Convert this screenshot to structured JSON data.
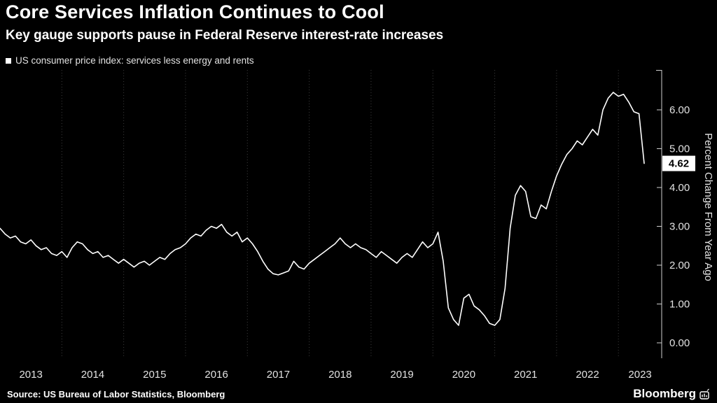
{
  "header": {
    "title": "Core Services Inflation Continues to Cool",
    "subtitle": "Key gauge supports pause in Federal Reserve interest-rate increases"
  },
  "legend": {
    "label": "US consumer price index: services less energy and rents"
  },
  "footer": {
    "source": "Source: US Bureau of Labor Statistics, Bloomberg",
    "brand": "Bloomberg"
  },
  "chart_data": {
    "type": "line",
    "title": "Core Services Inflation Continues to Cool",
    "subtitle": "Key gauge supports pause in Federal Reserve interest-rate increases",
    "ylabel": "Percent Change From Year Ago",
    "xlabel": "",
    "ylim": [
      0,
      7
    ],
    "grid": "vertical-dashed",
    "legend_position": "top-left",
    "background_color": "#000000",
    "line_color": "#ffffff",
    "grid_color": "#3d3d3d",
    "x_start": "2013-01",
    "frequency": "monthly",
    "x_years": [
      "2013",
      "2014",
      "2015",
      "2016",
      "2017",
      "2018",
      "2019",
      "2020",
      "2021",
      "2022",
      "2023"
    ],
    "y_ticks": [
      {
        "value": 6,
        "label": "6.00"
      },
      {
        "value": 5,
        "label": "5.00"
      },
      {
        "value": 4,
        "label": "4.00"
      },
      {
        "value": 3,
        "label": "3.00"
      },
      {
        "value": 2,
        "label": "2.00"
      },
      {
        "value": 1,
        "label": "1.00"
      },
      {
        "value": 0,
        "label": "0.00"
      }
    ],
    "last_value": 4.62,
    "last_value_label": "4.62",
    "series": [
      {
        "name": "US consumer price index: services less energy and rents",
        "values": [
          2.95,
          2.8,
          2.7,
          2.75,
          2.6,
          2.55,
          2.65,
          2.5,
          2.4,
          2.45,
          2.3,
          2.25,
          2.35,
          2.2,
          2.45,
          2.6,
          2.55,
          2.4,
          2.3,
          2.35,
          2.2,
          2.25,
          2.15,
          2.05,
          2.15,
          2.05,
          1.95,
          2.05,
          2.1,
          2.0,
          2.1,
          2.2,
          2.15,
          2.3,
          2.4,
          2.45,
          2.55,
          2.7,
          2.8,
          2.75,
          2.9,
          3.0,
          2.95,
          3.05,
          2.85,
          2.75,
          2.85,
          2.6,
          2.7,
          2.55,
          2.35,
          2.1,
          1.9,
          1.78,
          1.75,
          1.8,
          1.85,
          2.1,
          1.95,
          1.9,
          2.05,
          2.15,
          2.25,
          2.35,
          2.45,
          2.55,
          2.7,
          2.55,
          2.45,
          2.55,
          2.45,
          2.4,
          2.3,
          2.2,
          2.35,
          2.25,
          2.15,
          2.05,
          2.2,
          2.3,
          2.2,
          2.4,
          2.6,
          2.45,
          2.55,
          2.85,
          2.1,
          0.9,
          0.6,
          0.45,
          1.15,
          1.25,
          0.95,
          0.85,
          0.7,
          0.5,
          0.45,
          0.6,
          1.4,
          2.95,
          3.8,
          4.05,
          3.9,
          3.25,
          3.2,
          3.55,
          3.45,
          3.9,
          4.3,
          4.6,
          4.85,
          5.0,
          5.2,
          5.1,
          5.3,
          5.5,
          5.35,
          6.0,
          6.3,
          6.45,
          6.35,
          6.4,
          6.2,
          5.95,
          5.9,
          4.62
        ]
      }
    ]
  }
}
